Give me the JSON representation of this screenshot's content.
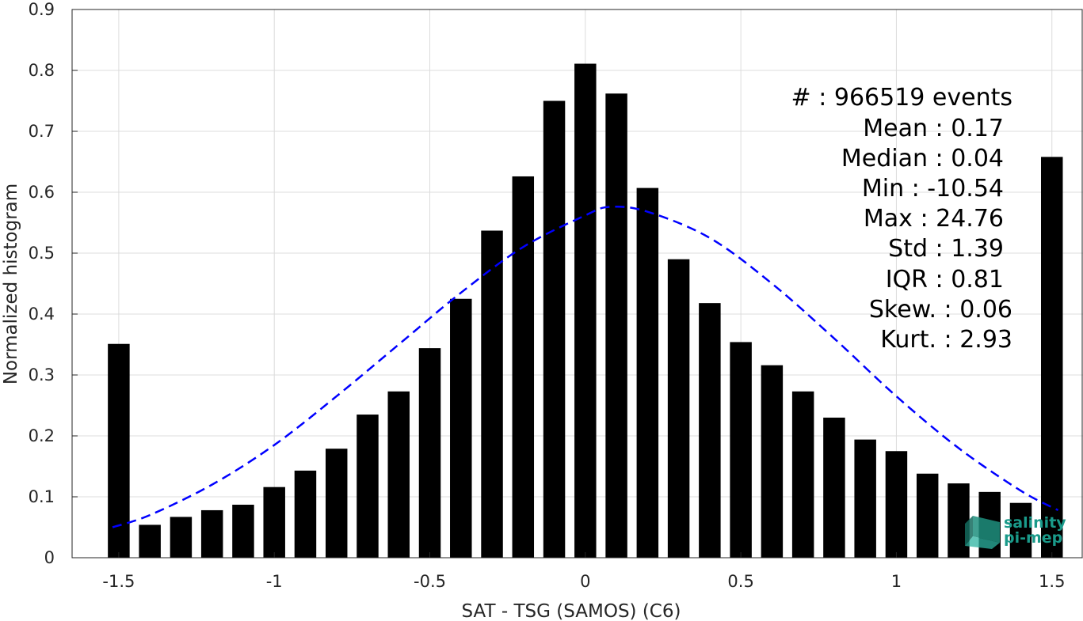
{
  "chart_data": {
    "type": "bar",
    "xlabel": "SAT - TSG (SAMOS) (C6)",
    "ylabel": "Normalized histogram",
    "xlim": [
      -1.65,
      1.6
    ],
    "ylim": [
      0,
      0.9
    ],
    "xticks": [
      -1.5,
      -1,
      -0.5,
      0,
      0.5,
      1,
      1.5
    ],
    "xtick_labels": [
      "-1.5",
      "-1",
      "-0.5",
      "0",
      "0.5",
      "1",
      "1.5"
    ],
    "yticks": [
      0,
      0.1,
      0.2,
      0.3,
      0.4,
      0.5,
      0.6,
      0.7,
      0.8,
      0.9
    ],
    "ytick_labels": [
      "0",
      "0.1",
      "0.2",
      "0.3",
      "0.4",
      "0.5",
      "0.6",
      "0.7",
      "0.8",
      "0.9"
    ],
    "grid": true,
    "bar_color": "#000000",
    "fit_color": "#0000ff",
    "x": [
      -1.5,
      -1.4,
      -1.3,
      -1.2,
      -1.1,
      -1.0,
      -0.9,
      -0.8,
      -0.7,
      -0.6,
      -0.5,
      -0.4,
      -0.3,
      -0.2,
      -0.1,
      0.0,
      0.1,
      0.2,
      0.3,
      0.4,
      0.5,
      0.6,
      0.7,
      0.8,
      0.9,
      1.0,
      1.1,
      1.2,
      1.3,
      1.4,
      1.5
    ],
    "values": [
      0.351,
      0.054,
      0.067,
      0.078,
      0.087,
      0.116,
      0.143,
      0.179,
      0.235,
      0.273,
      0.344,
      0.425,
      0.537,
      0.626,
      0.75,
      0.811,
      0.762,
      0.607,
      0.49,
      0.418,
      0.354,
      0.316,
      0.273,
      0.23,
      0.194,
      0.175,
      0.138,
      0.122,
      0.108,
      0.09,
      0.658
    ],
    "fit": {
      "style": "dashed",
      "x": [
        -1.52,
        -1.4,
        -1.2,
        -1.0,
        -0.8,
        -0.6,
        -0.4,
        -0.2,
        0.0,
        0.08,
        0.2,
        0.4,
        0.6,
        0.8,
        1.0,
        1.2,
        1.4,
        1.52
      ],
      "y": [
        0.05,
        0.07,
        0.12,
        0.185,
        0.265,
        0.35,
        0.435,
        0.51,
        0.562,
        0.576,
        0.568,
        0.525,
        0.45,
        0.36,
        0.265,
        0.18,
        0.11,
        0.078
      ]
    }
  },
  "stats": [
    {
      "label": "#  : 966519 events"
    },
    {
      "label": "Mean : 0.17"
    },
    {
      "label": "Median : 0.04"
    },
    {
      "label": "Min : -10.54"
    },
    {
      "label": "Max : 24.76"
    },
    {
      "label": "Std : 1.39"
    },
    {
      "label": "IQR : 0.81"
    },
    {
      "label": "Skew. : 0.06"
    },
    {
      "label": "Kurt. : 2.93"
    }
  ],
  "logo": {
    "line1": "salinity",
    "line2": "pi-mep",
    "color": "#1a9a8a"
  }
}
